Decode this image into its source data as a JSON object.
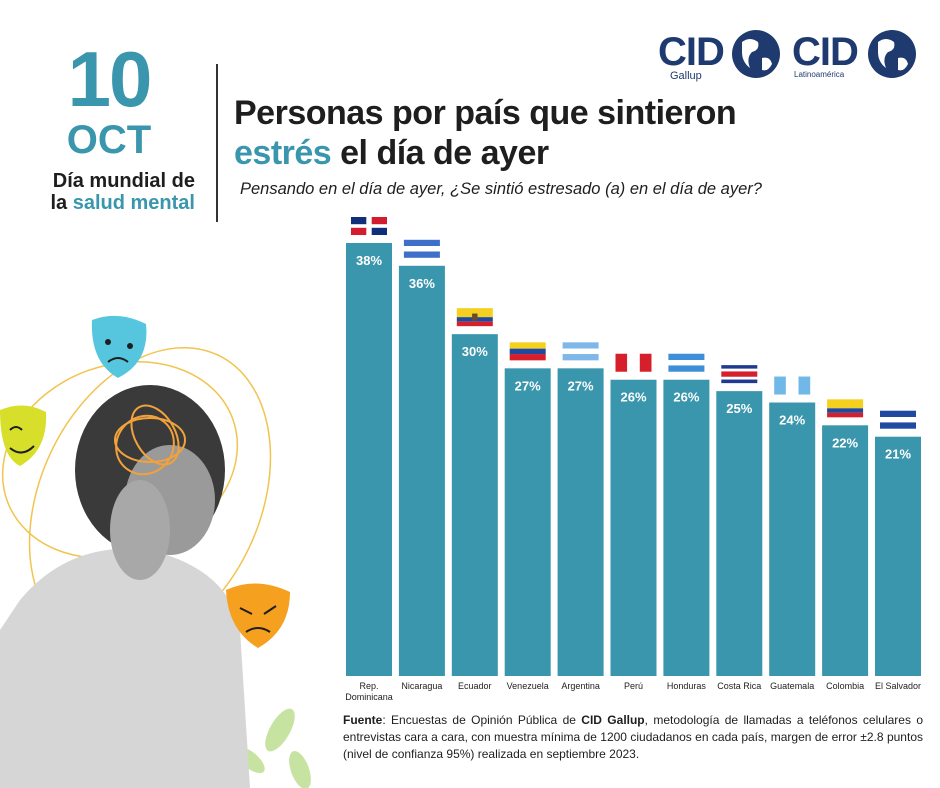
{
  "date": {
    "day": "10",
    "month": "OCT",
    "line1": "Día mundial de",
    "line2_prefix": "la ",
    "line2_highlight": "salud mental"
  },
  "title": {
    "line1": "Personas por país que sintieron",
    "line2_highlight": "estrés",
    "line2_rest": " el día de ayer"
  },
  "question": "Pensando en el día de ayer, ¿Se sintió estresado (a) en el día de ayer?",
  "logos": [
    {
      "name": "CID",
      "sub": "Gallup"
    },
    {
      "name": "CID",
      "sub": "Latinoamérica"
    }
  ],
  "source": {
    "label": "Fuente",
    "text1": ": Encuestas de Opinión Pública de ",
    "brand": "CID Gallup",
    "text2": ", metodología de llamadas a teléfonos celulares o entrevistas cara a cara, con muestra mínima de 1200 ciudadanos en cada país, margen de error ±2.8 puntos (nivel de confianza 95%) realizada en septiembre 2023."
  },
  "colors": {
    "bar": "#3a96ac",
    "accent": "#3a96ac",
    "logo": "#1f3a6e"
  },
  "chart_data": {
    "type": "bar",
    "categories": [
      "Rep. Dominicana",
      "Nicaragua",
      "Ecuador",
      "Venezuela",
      "Argentina",
      "Perú",
      "Honduras",
      "Costa Rica",
      "Guatemala",
      "Colombia",
      "El Salvador"
    ],
    "values": [
      38,
      36,
      30,
      27,
      27,
      26,
      26,
      25,
      24,
      22,
      21
    ],
    "labels": [
      "38%",
      "36%",
      "30%",
      "27%",
      "27%",
      "26%",
      "26%",
      "25%",
      "24%",
      "22%",
      "21%"
    ],
    "unit": "%",
    "ylim": [
      0,
      38
    ],
    "grid": false,
    "flags": [
      "flag-dominican-republic-icon",
      "flag-nicaragua-icon",
      "flag-ecuador-icon",
      "flag-venezuela-icon",
      "flag-argentina-icon",
      "flag-peru-icon",
      "flag-honduras-icon",
      "flag-costa-rica-icon",
      "flag-guatemala-icon",
      "flag-colombia-icon",
      "flag-el-salvador-icon"
    ]
  }
}
